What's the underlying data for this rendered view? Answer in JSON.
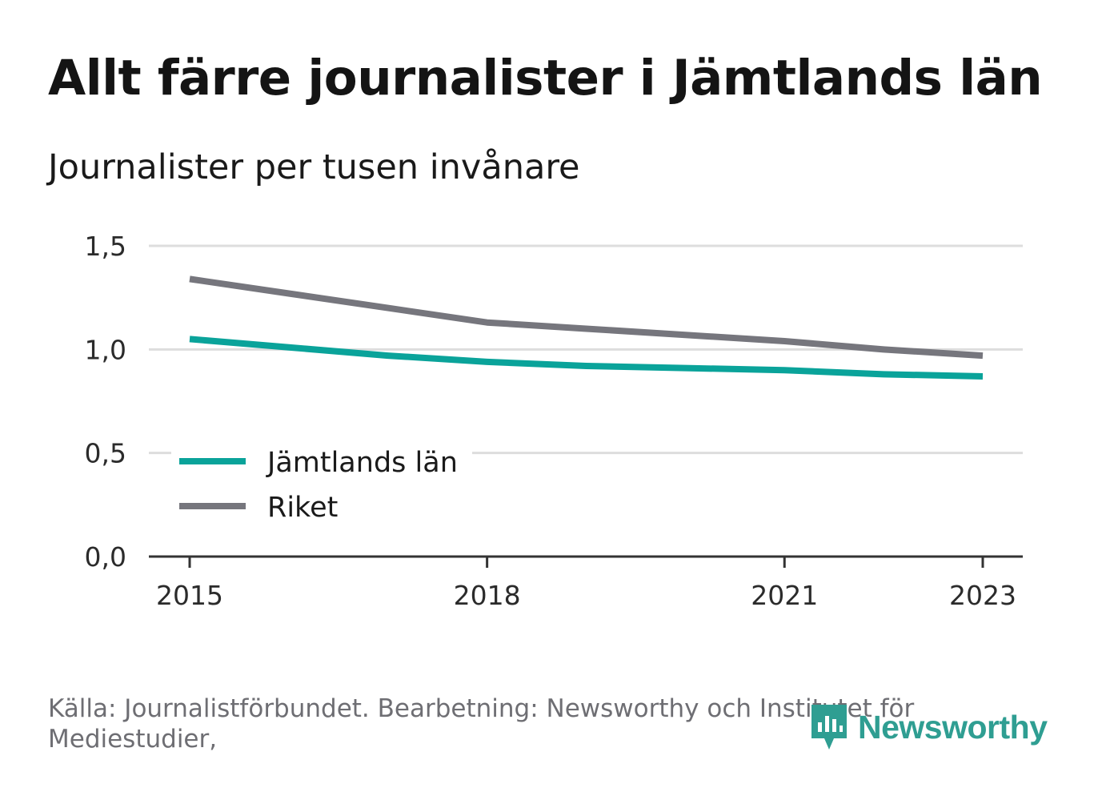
{
  "title": "Allt färre journalister i Jämtlands län",
  "subtitle": "Journalister per tusen invånare",
  "chart_data": {
    "type": "line",
    "x": [
      2015,
      2016,
      2017,
      2018,
      2019,
      2020,
      2021,
      2022,
      2023
    ],
    "x_ticks": [
      "2015",
      "2018",
      "2021",
      "2023"
    ],
    "ylim": [
      0,
      1.5
    ],
    "y_ticks": [
      "0,0",
      "0,5",
      "1,0",
      "1,5"
    ],
    "grid": true,
    "legend_placement": "lower-left",
    "series": [
      {
        "name": "Jämtlands län",
        "color": "#0aa39a",
        "values": [
          1.05,
          1.01,
          0.97,
          0.94,
          0.92,
          0.91,
          0.9,
          0.88,
          0.87
        ]
      },
      {
        "name": "Riket",
        "color": "#76767d",
        "values": [
          1.34,
          1.27,
          1.2,
          1.13,
          1.1,
          1.07,
          1.04,
          1.0,
          0.97
        ]
      }
    ]
  },
  "footer": {
    "source": "Källa: Journalistförbundet. Bearbetning: Newsworthy och Institutet för Mediestudier,",
    "brand": "Newsworthy",
    "brand_color": "#2f9e92",
    "brand_icon": "newsworthy-logo-icon"
  }
}
